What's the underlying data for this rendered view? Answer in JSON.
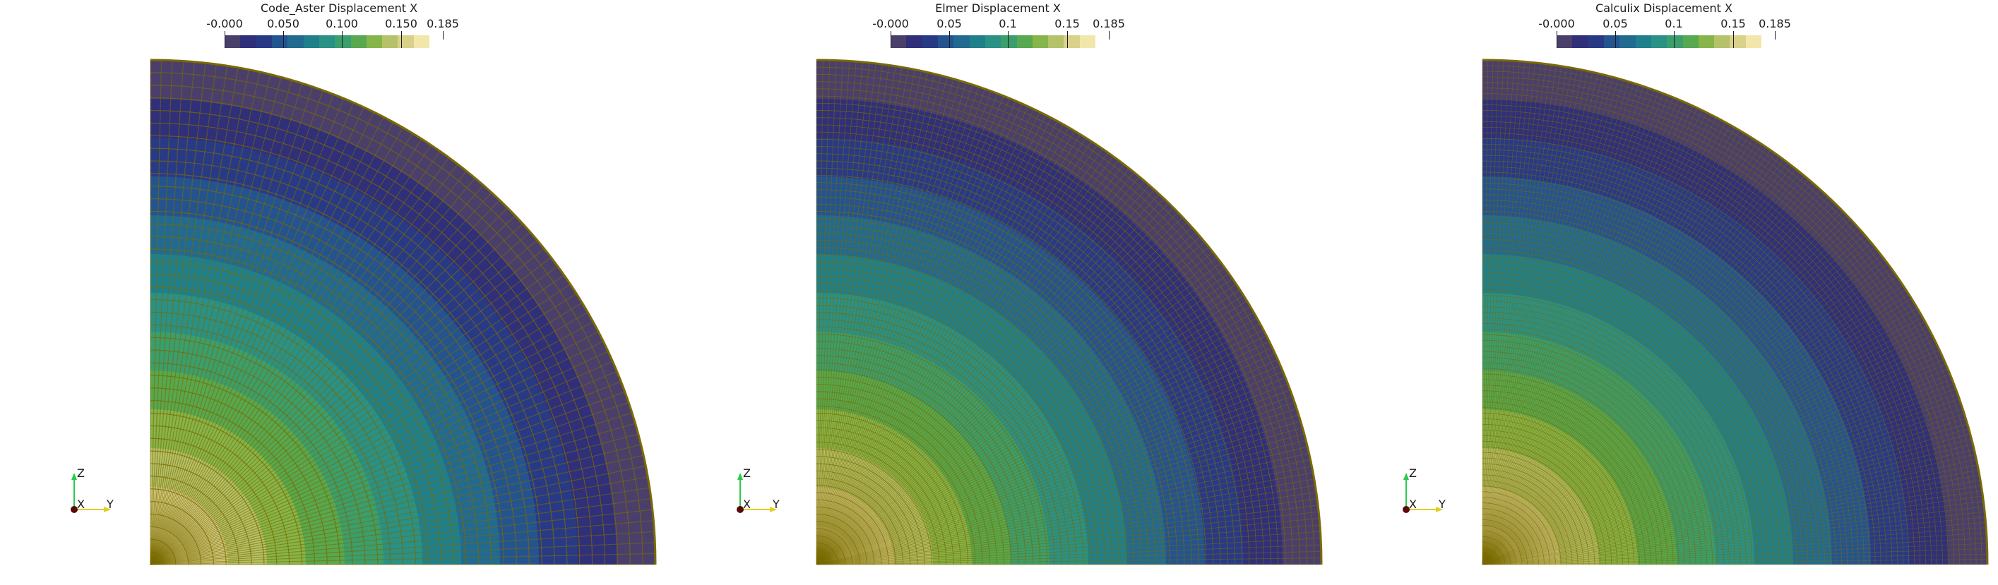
{
  "views": [
    {
      "title": "Code_Aster Displacement X",
      "ticks": [
        "-0.000",
        "0.050",
        "0.100",
        "0.150",
        "0.185"
      ],
      "mesh": {
        "radial": 40,
        "angular": 72
      },
      "axes": {
        "z": "Z",
        "x": "X",
        "y": "Y"
      }
    },
    {
      "title": "Elmer Displacement X",
      "ticks": [
        "-0.000",
        "0.05",
        "0.1",
        "0.15",
        "0.185"
      ],
      "mesh": {
        "radial": 70,
        "angular": 120
      },
      "axes": {
        "z": "Z",
        "x": "X",
        "y": "Y"
      }
    },
    {
      "title": "Calculix Displacement X",
      "ticks": [
        "-0.000",
        "0.05",
        "0.1",
        "0.15",
        "0.185"
      ],
      "mesh": {
        "radial": 90,
        "angular": 150
      },
      "axes": {
        "z": "Z",
        "x": "X",
        "y": "Y"
      }
    }
  ],
  "colormap": [
    "#4a3f6b",
    "#2f2f7a",
    "#283a86",
    "#24548f",
    "#226a8f",
    "#1f808c",
    "#2a9186",
    "#3b9e6d",
    "#57a84f",
    "#86b54a",
    "#b5c26a",
    "#d9d18a",
    "#f2e6aa"
  ],
  "mesh_color": "#7a6a00"
}
